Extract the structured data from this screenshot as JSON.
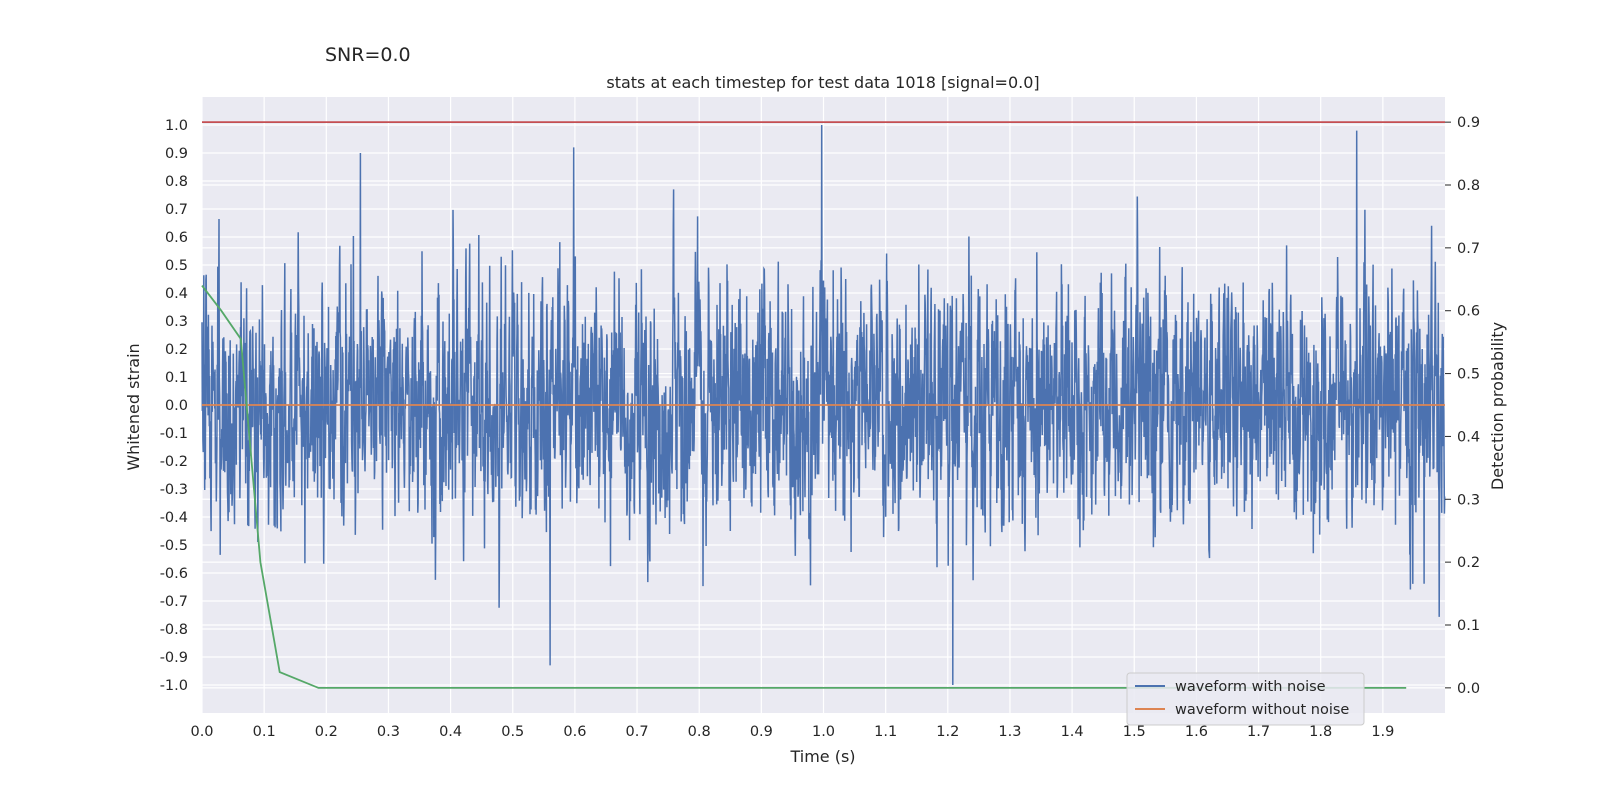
{
  "figure": {
    "suptitle": "SNR=0.0",
    "colors": {
      "background": "#eaeaf2",
      "grid": "#ffffff",
      "text": "#262626"
    }
  },
  "chart_data": {
    "type": "line",
    "title": "stats at each timestep for test data 1018 [signal=0.0]",
    "xlabel": "Time (s)",
    "ylabel": "Whitened strain",
    "y2label": "Detection probability",
    "xlim": [
      0.0,
      2.0
    ],
    "ylim": [
      -1.1,
      1.1
    ],
    "y2lim": [
      -0.04,
      0.94
    ],
    "xticks": [
      "0.0",
      "0.1",
      "0.2",
      "0.3",
      "0.4",
      "0.5",
      "0.6",
      "0.7",
      "0.8",
      "0.9",
      "1.0",
      "1.1",
      "1.2",
      "1.3",
      "1.4",
      "1.5",
      "1.6",
      "1.7",
      "1.8",
      "1.9"
    ],
    "yticks": [
      "1.0",
      "0.9",
      "0.8",
      "0.7",
      "0.6",
      "0.5",
      "0.4",
      "0.3",
      "0.2",
      "0.1",
      "0.0",
      "-0.1",
      "-0.2",
      "-0.3",
      "-0.4",
      "-0.5",
      "-0.6",
      "-0.7",
      "-0.8",
      "-0.9",
      "-1.0"
    ],
    "y2ticks": [
      "0.9",
      "0.8",
      "0.7",
      "0.6",
      "0.5",
      "0.4",
      "0.3",
      "0.2",
      "0.1",
      "0.0"
    ],
    "grid": true,
    "legend": {
      "placement": "lower-right",
      "entries": [
        "waveform with noise",
        "waveform without noise"
      ]
    },
    "series": [
      {
        "name": "waveform with noise",
        "color": "#4c72b0",
        "axis": "left",
        "description": "dense noisy strain sampled at ~2048 Hz, values mostly within -0.8..0.9",
        "sample_count": 4096,
        "notable_peaks": [
          {
            "x": 0.997,
            "y": 1.0
          },
          {
            "x": 1.858,
            "y": 0.98
          },
          {
            "x": 1.208,
            "y": -1.0
          },
          {
            "x": 0.56,
            "y": -0.93
          },
          {
            "x": 0.255,
            "y": 0.9
          },
          {
            "x": 0.598,
            "y": 0.92
          }
        ]
      },
      {
        "name": "waveform without noise",
        "color": "#dd8452",
        "axis": "left",
        "x": [
          0.0,
          2.0
        ],
        "y": [
          0.0,
          0.0
        ]
      },
      {
        "color": "#55a868",
        "axis": "right",
        "x": [
          0.0,
          0.031,
          0.0625,
          0.094,
          0.125,
          0.1875,
          0.25,
          1.9375
        ],
        "y": [
          0.64,
          0.6,
          0.555,
          0.2,
          0.025,
          0.0,
          0.0,
          0.0
        ]
      },
      {
        "color": "#c44e52",
        "axis": "right",
        "x": [
          0.0,
          2.0
        ],
        "y": [
          0.9,
          0.9
        ]
      }
    ]
  }
}
